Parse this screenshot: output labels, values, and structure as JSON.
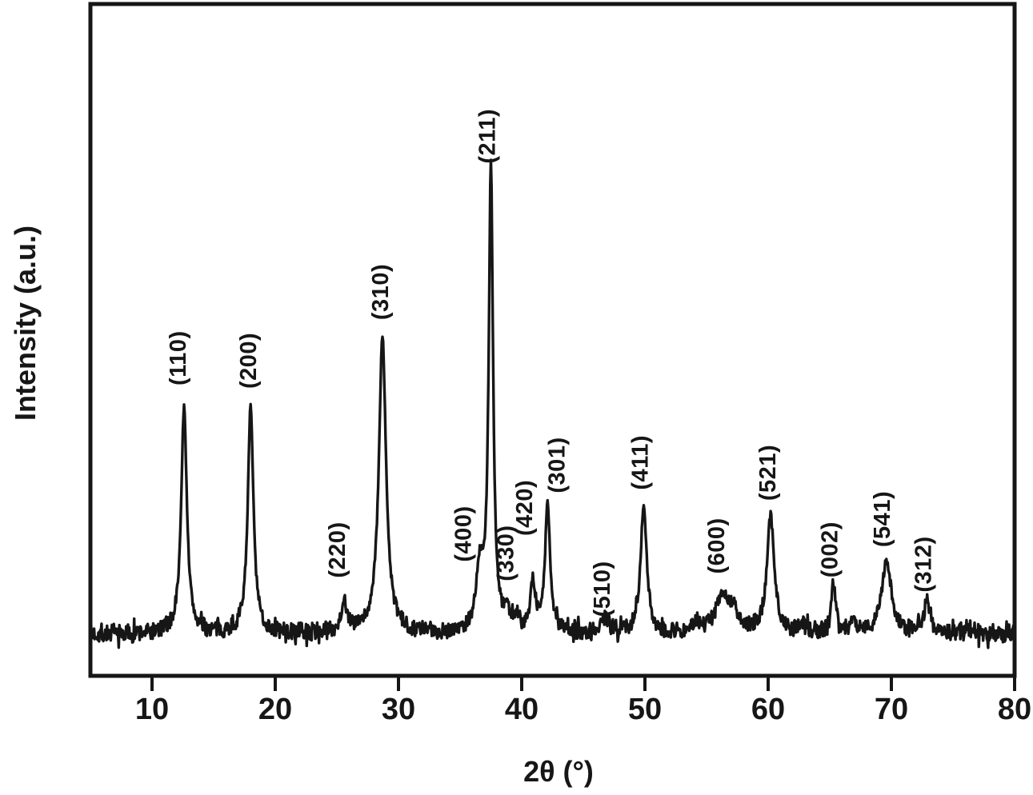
{
  "figure": {
    "background_color": "#ffffff",
    "trace_color": "#161616",
    "text_color": "#161616"
  },
  "chart_data": {
    "type": "line",
    "title": "",
    "xlabel": "2θ (°)",
    "ylabel": "Intensity (a.u.)",
    "xlim": [
      5,
      80
    ],
    "ylim": [
      -9,
      136
    ],
    "x_ticks": [
      10,
      20,
      30,
      40,
      50,
      60,
      70,
      80
    ],
    "y_ticks": [],
    "grid": false,
    "legend": null,
    "noise": {
      "amplitude": 2.0,
      "seed": 7
    },
    "peaks": [
      {
        "label": "(110)",
        "two_theta": 12.6,
        "rel_intensity": 49,
        "fwhm_deg": 0.55,
        "label_dx": -5,
        "label_gap": 27
      },
      {
        "label": "(200)",
        "two_theta": 18.0,
        "rel_intensity": 49,
        "fwhm_deg": 0.55,
        "label_dx": 0,
        "label_gap": 23
      },
      {
        "label": "(220)",
        "two_theta": 25.6,
        "rel_intensity": 6.6,
        "fwhm_deg": 0.6,
        "label_dx": -6,
        "label_gap": 32
      },
      {
        "label": "(310)",
        "two_theta": 28.7,
        "rel_intensity": 64,
        "fwhm_deg": 0.7,
        "label_dx": 0,
        "label_gap": 22
      },
      {
        "label": "(400)",
        "two_theta": 36.6,
        "rel_intensity": 13,
        "fwhm_deg": 0.7,
        "label_dx": -18,
        "label_gap": 15
      },
      {
        "label": "(211)",
        "two_theta": 37.5,
        "rel_intensity": 100,
        "fwhm_deg": 0.42,
        "label_dx": -2,
        "label_gap": 9
      },
      {
        "label": "(330)",
        "two_theta": 38.8,
        "rel_intensity": 4,
        "fwhm_deg": 0.5,
        "label_dx": 1,
        "label_gap": 43
      },
      {
        "label": "(420)",
        "two_theta": 40.9,
        "rel_intensity": 10.5,
        "fwhm_deg": 0.5,
        "label_dx": -8,
        "label_gap": 62
      },
      {
        "label": "(301)",
        "two_theta": 42.1,
        "rel_intensity": 27.5,
        "fwhm_deg": 0.5,
        "label_dx": 14,
        "label_gap": 17
      },
      {
        "label": "(510)",
        "two_theta": 46.7,
        "rel_intensity": 3,
        "fwhm_deg": 0.9,
        "label_dx": 0,
        "label_gap": 4
      },
      {
        "label": "(411)",
        "two_theta": 49.9,
        "rel_intensity": 27.5,
        "fwhm_deg": 0.6,
        "label_dx": -2,
        "label_gap": 21
      },
      {
        "label": "(600)",
        "two_theta": 56.3,
        "rel_intensity": 8,
        "fwhm_deg": 1.3,
        "label_dx": -5,
        "label_gap": 29
      },
      {
        "label": "(521)",
        "two_theta": 60.2,
        "rel_intensity": 25.5,
        "fwhm_deg": 0.7,
        "label_dx": -1,
        "label_gap": 19
      },
      {
        "label": "(002)",
        "two_theta": 65.3,
        "rel_intensity": 10.8,
        "fwhm_deg": 0.45,
        "label_dx": -2,
        "label_gap": 8
      },
      {
        "label": "(541)",
        "two_theta": 69.6,
        "rel_intensity": 15.5,
        "fwhm_deg": 0.95,
        "label_dx": -3,
        "label_gap": 19
      },
      {
        "label": "(312)",
        "two_theta": 72.9,
        "rel_intensity": 7.3,
        "fwhm_deg": 0.55,
        "label_dx": -2,
        "label_gap": 10
      }
    ],
    "minor_features": [
      {
        "two_theta": 39.6,
        "rel_intensity": 3.0,
        "fwhm_deg": 0.5
      },
      {
        "two_theta": 54.2,
        "rel_intensity": 1.8,
        "fwhm_deg": 0.8
      },
      {
        "two_theta": 57.2,
        "rel_intensity": 3.5,
        "fwhm_deg": 0.9
      },
      {
        "two_theta": 62.9,
        "rel_intensity": 2.2,
        "fwhm_deg": 0.6
      },
      {
        "two_theta": 66.9,
        "rel_intensity": 3.0,
        "fwhm_deg": 0.5
      },
      {
        "two_theta": 76.2,
        "rel_intensity": 1.4,
        "fwhm_deg": 0.8
      }
    ]
  }
}
